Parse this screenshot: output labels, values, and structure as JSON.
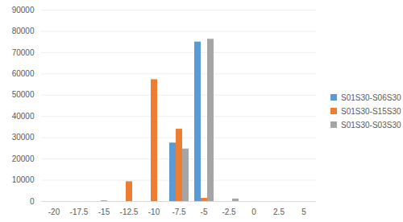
{
  "chart_data": {
    "type": "bar",
    "categories": [
      "-20",
      "-17.5",
      "-15",
      "-12.5",
      "-10",
      "-7.5",
      "-5",
      "-2.5",
      "0",
      "2.5",
      "5"
    ],
    "series": [
      {
        "name": "S01S30-S06S30",
        "color": "#5b9bd5",
        "values": [
          0,
          0,
          0,
          0,
          0,
          27500,
          75000,
          0,
          0,
          0,
          0
        ]
      },
      {
        "name": "S01S30-S15S30",
        "color": "#ed7d31",
        "values": [
          0,
          0,
          300,
          9300,
          57300,
          34000,
          1500,
          0,
          0,
          0,
          0
        ]
      },
      {
        "name": "S01S30-S03S30",
        "color": "#a5a5a5",
        "values": [
          0,
          0,
          0,
          0,
          0,
          24700,
          76300,
          1200,
          0,
          0,
          0
        ]
      }
    ],
    "ylim": [
      0,
      90000
    ],
    "yticks": [
      0,
      10000,
      20000,
      30000,
      40000,
      50000,
      60000,
      70000,
      80000,
      90000
    ],
    "grid": true,
    "legend": "right"
  }
}
